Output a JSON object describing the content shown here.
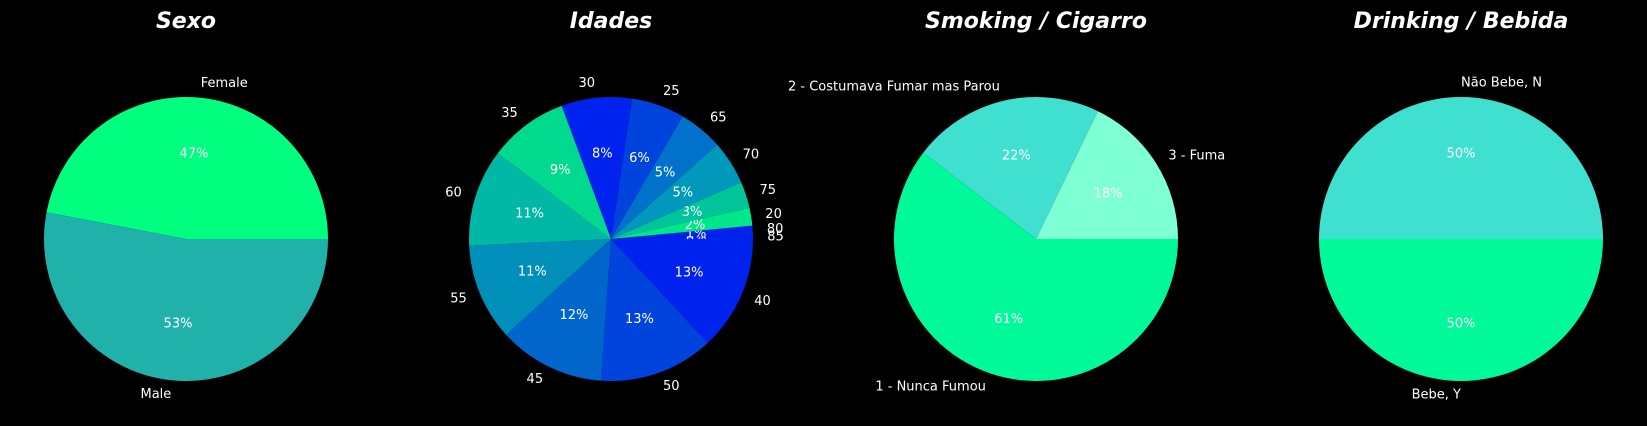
{
  "background": "#000000",
  "chart_data": [
    {
      "type": "pie",
      "title": "Sexo",
      "start_angle": 0,
      "direction": "counterclockwise",
      "labels": [
        "Female",
        "Male"
      ],
      "values": [
        47,
        53
      ],
      "value_labels": [
        "47%",
        "53%"
      ],
      "colors": [
        "#00ff7f",
        "#20b2aa"
      ]
    },
    {
      "type": "pie",
      "title": "Idades",
      "start_angle": 0,
      "direction": "counterclockwise",
      "labels": [
        "85",
        "80",
        "20",
        "75",
        "70",
        "65",
        "25",
        "30",
        "35",
        "60",
        "55",
        "45",
        "50",
        "40"
      ],
      "values": [
        0.4,
        1.1,
        2,
        3,
        5,
        5,
        6,
        8,
        9,
        11,
        11,
        12,
        13,
        13
      ],
      "value_labels": [
        "0%",
        "1%",
        "2%",
        "3%",
        "5%",
        "5%",
        "6%",
        "8%",
        "9%",
        "11%",
        "11%",
        "12%",
        "13%",
        "13%"
      ],
      "colors": [
        "#0022ee",
        "#0022ee",
        "#00e68a",
        "#00c49a",
        "#0099bb",
        "#0072cc",
        "#0044dd",
        "#0022ee",
        "#00d98e",
        "#00b8a5",
        "#008fb8",
        "#0066cc",
        "#0044dd",
        "#0022ee"
      ]
    },
    {
      "type": "pie",
      "title": "Smoking / Cigarro",
      "start_angle": 0,
      "direction": "counterclockwise",
      "labels": [
        "3 - Fuma",
        "2 - Costumava Fumar mas Parou",
        "1 - Nunca Fumou"
      ],
      "values": [
        18,
        22,
        61
      ],
      "value_labels": [
        "18%",
        "22%",
        "61%"
      ],
      "colors": [
        "#7fffd4",
        "#40e0d0",
        "#00fa9a"
      ]
    },
    {
      "type": "pie",
      "title": "Drinking / Bebida",
      "start_angle": 0,
      "direction": "counterclockwise",
      "labels": [
        "Não Bebe, N",
        "Bebe, Y"
      ],
      "values": [
        50,
        50
      ],
      "value_labels": [
        "50%",
        "50%"
      ],
      "colors": [
        "#40e0d0",
        "#00fa9a"
      ]
    }
  ]
}
